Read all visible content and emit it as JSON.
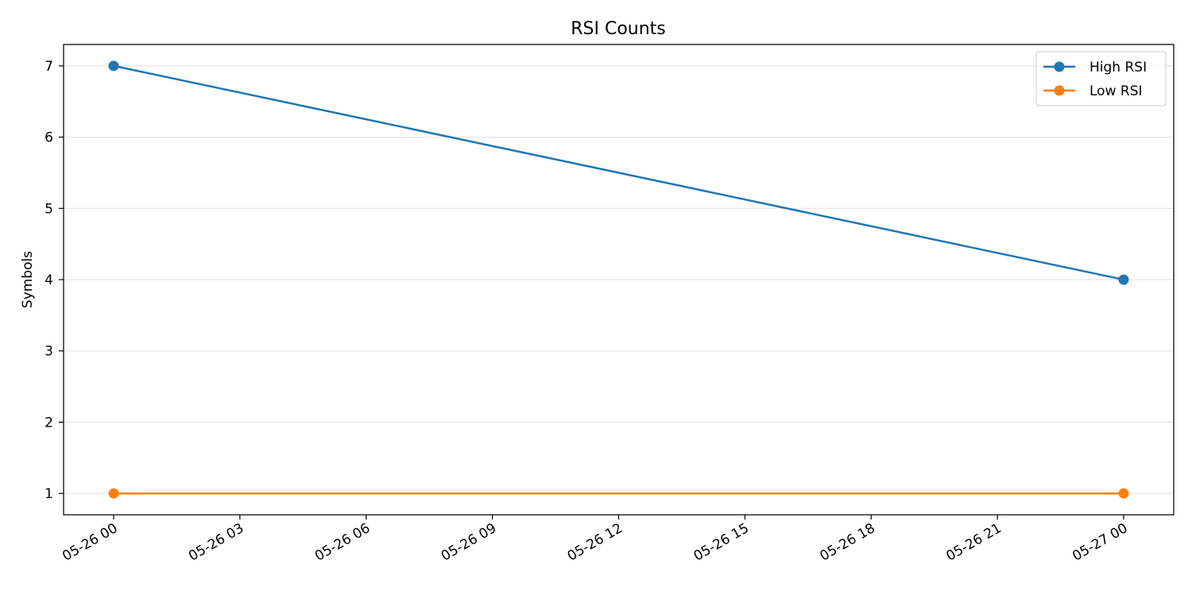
{
  "chart_data": {
    "type": "line",
    "title": "RSI Counts",
    "xlabel": "",
    "ylabel": "Symbols",
    "x": [
      "05-26 00",
      "05-27 00"
    ],
    "x_ticks": [
      "05-26 00",
      "05-26 03",
      "05-26 06",
      "05-26 09",
      "05-26 12",
      "05-26 15",
      "05-26 18",
      "05-26 21",
      "05-27 00"
    ],
    "y_ticks": [
      "1",
      "2",
      "3",
      "4",
      "5",
      "6",
      "7"
    ],
    "ylim": [
      0.7,
      7.3
    ],
    "grid": "horizontal",
    "legend_position": "top-right",
    "series": [
      {
        "name": "High RSI",
        "values": [
          7,
          4
        ],
        "color": "#1f77b4"
      },
      {
        "name": "Low RSI",
        "values": [
          1,
          1
        ],
        "color": "#ff7f0e"
      }
    ]
  }
}
